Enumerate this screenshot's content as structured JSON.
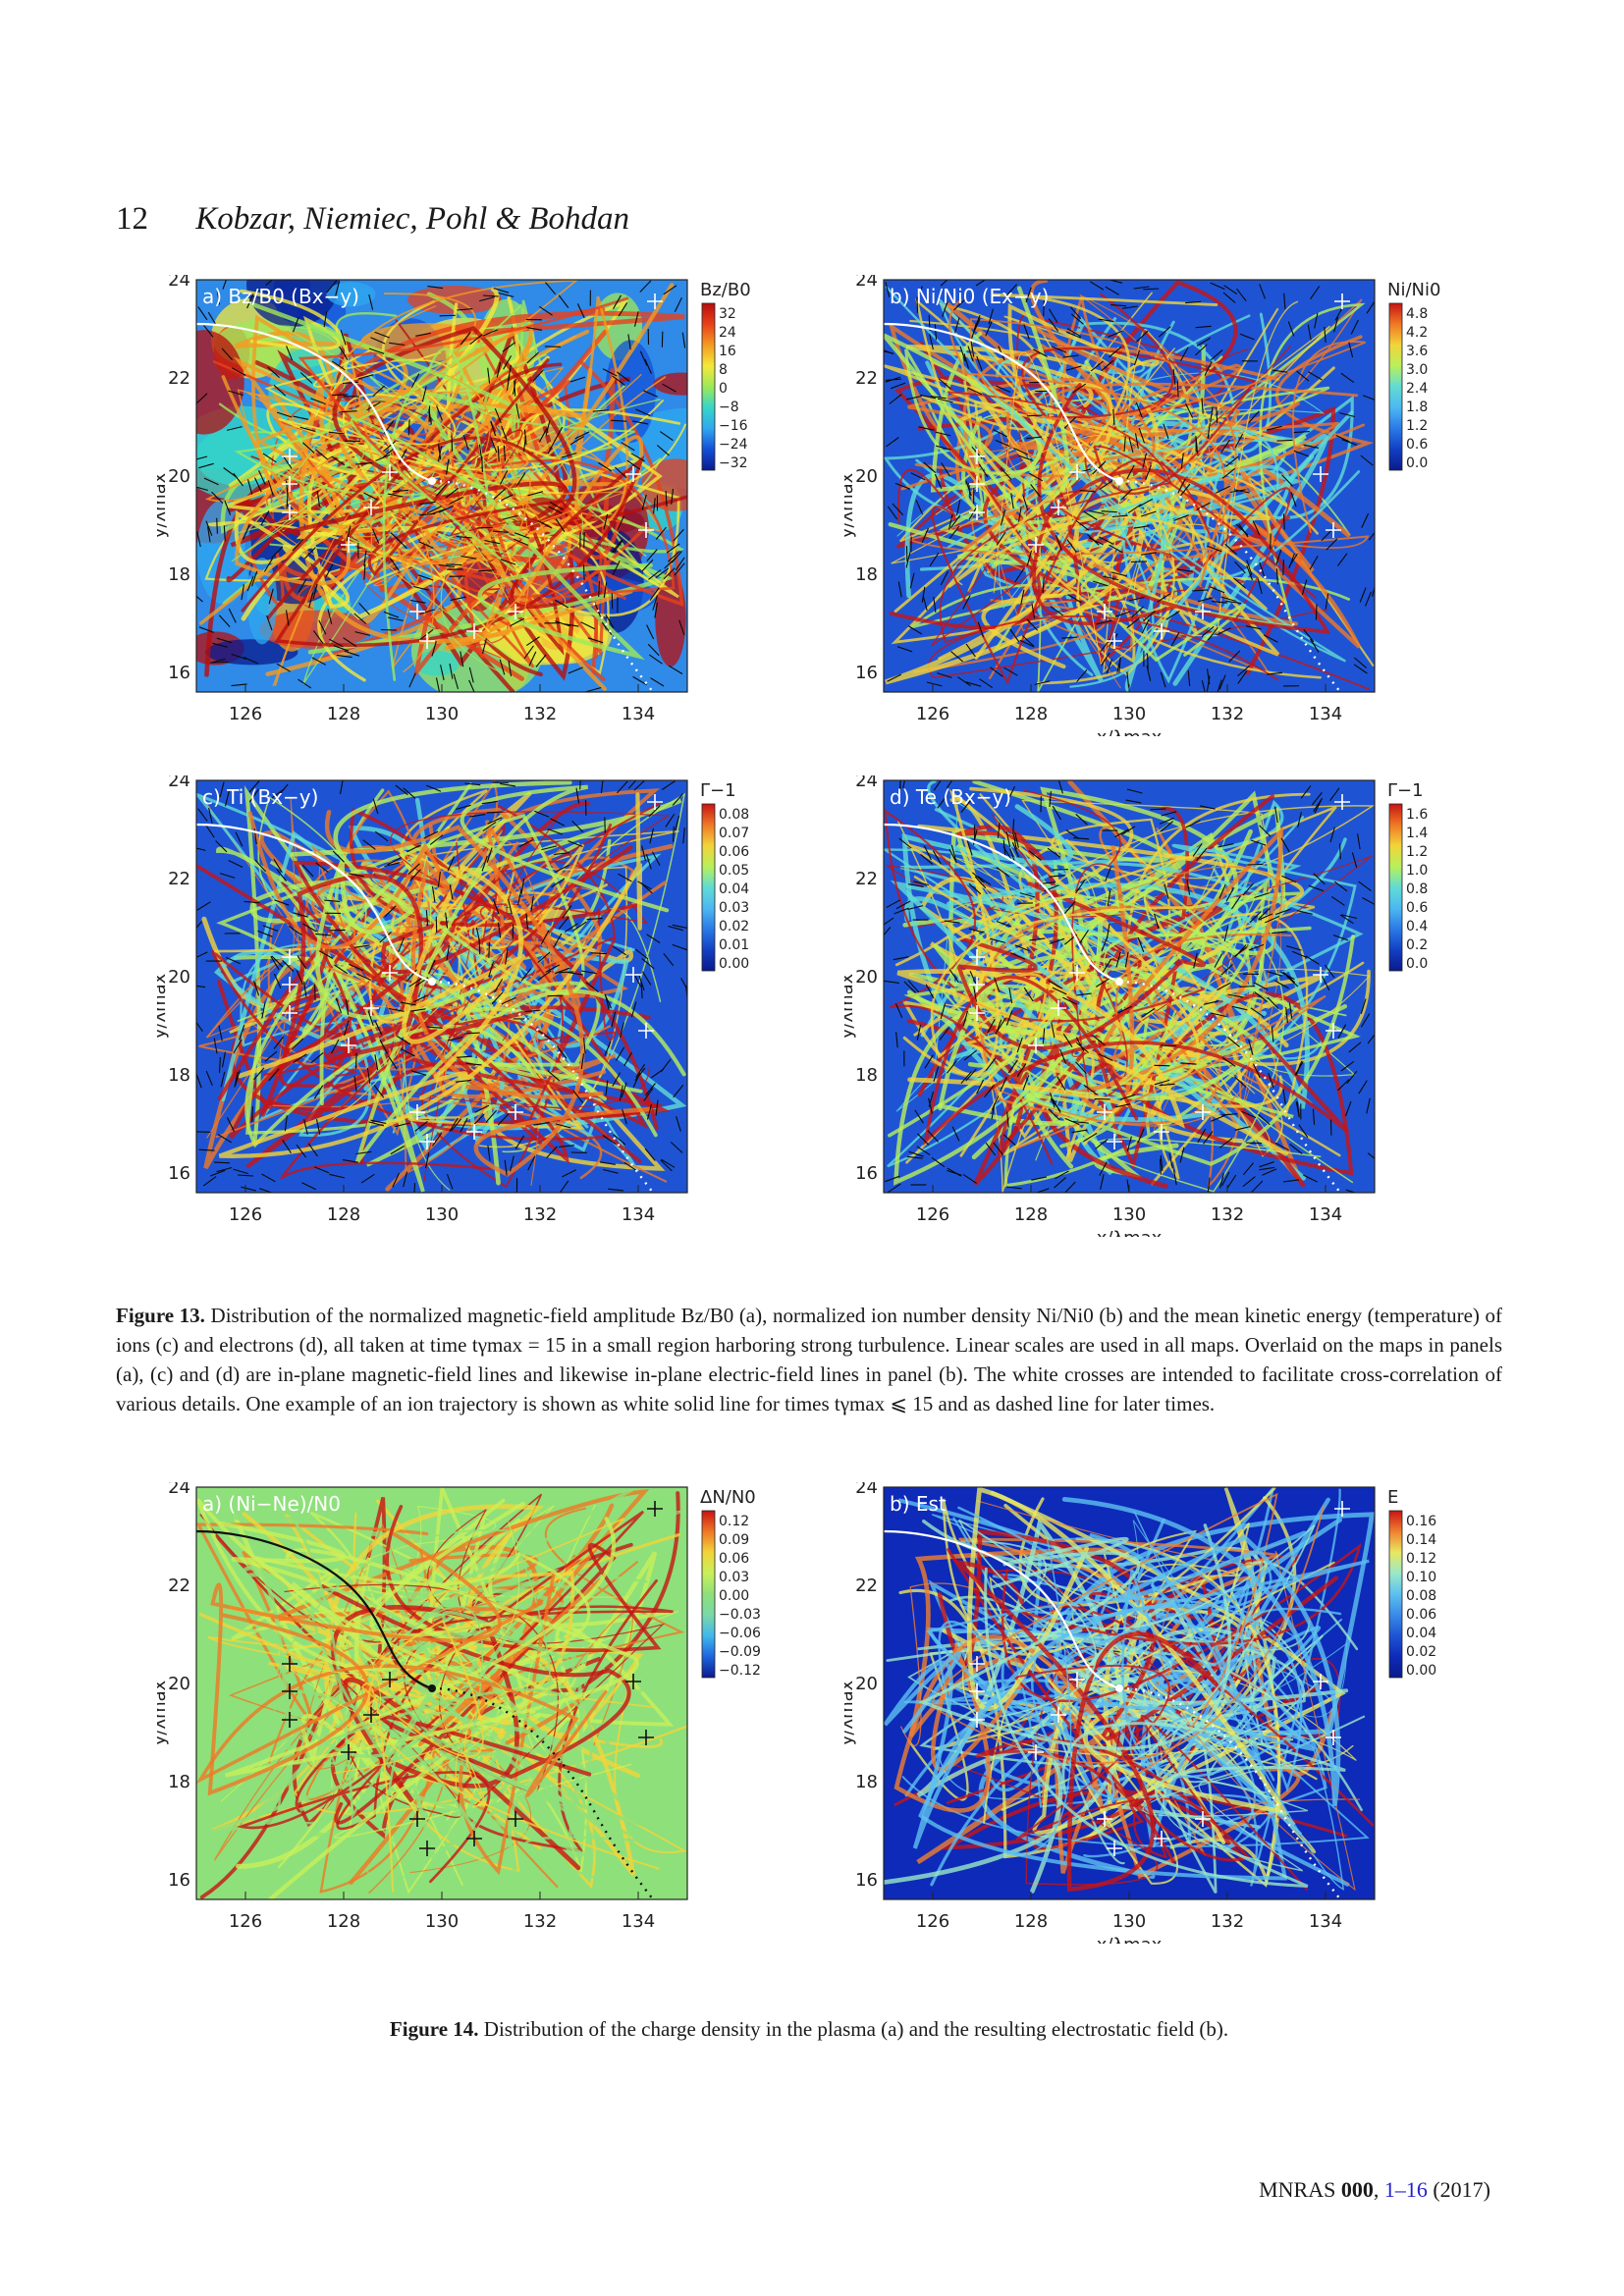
{
  "header": {
    "page_number": "12",
    "authors": "Kobzar, Niemiec, Pohl & Bohdan"
  },
  "axes": {
    "x_ticks": [
      "126",
      "128",
      "130",
      "132",
      "134"
    ],
    "y_ticks": [
      "24",
      "22",
      "20",
      "18",
      "16"
    ],
    "x_label": "x/λmax",
    "y_label": "y/λmax"
  },
  "panels": [
    {
      "id": "13a",
      "label": "a) Bz/B0 (Bx−y)",
      "colorbar_title": "Bz/B0",
      "colorbar_ticks": [
        "32",
        "24",
        "16",
        "8",
        "0",
        "−8",
        "−16",
        "−24",
        "−32"
      ],
      "colormap": "rainbow",
      "vectors": true,
      "y_label_shown": true,
      "x_label_shown": false,
      "trajectory_color": "#ffffff"
    },
    {
      "id": "13b",
      "label": "b) Ni/Ni0 (Ex−y)",
      "colorbar_title": "Ni/Ni0",
      "colorbar_ticks": [
        "4.8",
        "4.2",
        "3.6",
        "3.0",
        "2.4",
        "1.8",
        "1.2",
        "0.6",
        "0.0"
      ],
      "colormap": "blue",
      "vectors": true,
      "y_label_shown": true,
      "x_label_shown": true,
      "trajectory_color": "#ffffff"
    },
    {
      "id": "13c",
      "label": "c) Ti (Bx−y)",
      "colorbar_title": "Γ−1",
      "colorbar_ticks": [
        "0.08",
        "0.07",
        "0.06",
        "0.05",
        "0.04",
        "0.03",
        "0.02",
        "0.01",
        "0.00"
      ],
      "colormap": "blue",
      "vectors": true,
      "y_label_shown": true,
      "x_label_shown": false,
      "trajectory_color": "#ffffff"
    },
    {
      "id": "13d",
      "label": "d) Te (Bx−y)",
      "colorbar_title": "Γ−1",
      "colorbar_ticks": [
        "1.6",
        "1.4",
        "1.2",
        "1.0",
        "0.8",
        "0.6",
        "0.4",
        "0.2",
        "0.0"
      ],
      "colormap": "blue",
      "vectors": true,
      "y_label_shown": true,
      "x_label_shown": true,
      "trajectory_color": "#ffffff"
    },
    {
      "id": "14a",
      "label": "a) (Ni−Ne)/N0",
      "colorbar_title": "ΔN/N0",
      "colorbar_ticks": [
        "0.12",
        "0.09",
        "0.06",
        "0.03",
        "0.00",
        "−0.03",
        "−0.06",
        "−0.09",
        "−0.12"
      ],
      "colormap": "green",
      "vectors": false,
      "y_label_shown": true,
      "x_label_shown": false,
      "trajectory_color": "#111111"
    },
    {
      "id": "14b",
      "label": "b) Est",
      "colorbar_title": "E",
      "colorbar_ticks": [
        "0.16",
        "0.14",
        "0.12",
        "0.10",
        "0.08",
        "0.06",
        "0.04",
        "0.02",
        "0.00"
      ],
      "colormap": "dark",
      "vectors": false,
      "y_label_shown": true,
      "x_label_shown": true,
      "trajectory_color": "#ffffff"
    }
  ],
  "captions": {
    "fig13_label": "Figure 13.",
    "fig13_text": "Distribution of the normalized magnetic-field amplitude Bz/B0 (a), normalized ion number density Ni/Ni0 (b) and the mean kinetic energy (temperature) of ions (c) and electrons (d), all taken at time tγmax = 15 in a small region harboring strong turbulence. Linear scales are used in all maps. Overlaid on the maps in panels (a), (c) and (d) are in-plane magnetic-field lines and likewise in-plane electric-field lines in panel (b). The white crosses are intended to facilitate cross-correlation of various details. One example of an ion trajectory is shown as white solid line for times tγmax ⩽ 15 and as dashed line for later times.",
    "fig14_label": "Figure 14.",
    "fig14_text": "Distribution of the charge density in the plasma (a) and the resulting electrostatic field (b)."
  },
  "footer": {
    "journal": "MNRAS",
    "volume": "000",
    "pages": "1–16",
    "year": "(2017)"
  }
}
